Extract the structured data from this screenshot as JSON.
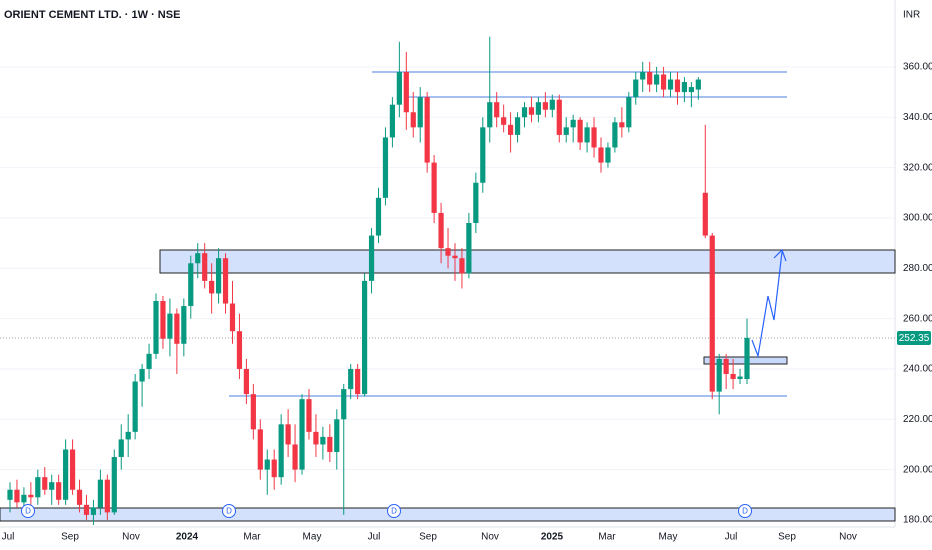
{
  "chart_data": {
    "type": "candlestick",
    "title": "ORIENT CEMENT LTD. · 1W · NSE",
    "currency": "INR",
    "last_price": 252.35,
    "up_color": "#089981",
    "down_color": "#f23645",
    "ylim": [
      177.2,
      386.6
    ],
    "yticks": [
      {
        "value": 180,
        "label": "180.00"
      },
      {
        "value": 200,
        "label": "200.00"
      },
      {
        "value": 220,
        "label": "220.00"
      },
      {
        "value": 240,
        "label": "240.00"
      },
      {
        "value": 260,
        "label": "260.00"
      },
      {
        "value": 280,
        "label": "280.00"
      },
      {
        "value": 300,
        "label": "300.00"
      },
      {
        "value": 320,
        "label": "320.00"
      },
      {
        "value": 340,
        "label": "340.00"
      },
      {
        "value": 360,
        "label": "360.00"
      }
    ],
    "xtick_labels": [
      "Jul",
      "Sep",
      "Nov",
      "2024",
      "Mar",
      "May",
      "Jul",
      "Sep",
      "Nov",
      "2025",
      "Mar",
      "May",
      "Jul",
      "Sep",
      "Nov"
    ],
    "events": [
      "D",
      "D",
      "D",
      "D"
    ],
    "open": [
      188,
      192,
      187,
      190,
      189,
      197,
      192,
      195,
      188,
      208,
      192,
      186,
      182,
      185,
      196,
      183,
      205,
      212,
      215,
      235,
      240,
      246,
      267,
      252,
      262,
      250,
      265,
      282,
      286,
      275,
      270,
      284,
      266,
      255,
      240,
      230,
      216,
      200,
      204,
      197,
      218,
      210,
      200,
      228,
      215,
      210,
      213,
      207,
      220,
      232,
      240,
      230,
      275,
      293,
      308,
      332,
      345,
      358,
      342,
      336,
      348,
      322,
      302,
      288,
      285,
      284,
      278,
      298,
      314,
      336,
      346,
      340,
      337,
      333,
      340,
      344,
      341,
      346,
      343,
      347,
      333,
      336,
      339,
      330,
      336,
      328,
      322,
      328,
      338,
      336,
      348,
      355,
      358,
      353,
      357,
      351,
      355,
      350,
      350,
      351,
      310,
      293,
      231,
      244,
      238,
      236,
      236
    ],
    "high": [
      195,
      196,
      193,
      195,
      200,
      201,
      198,
      198,
      212,
      212,
      196,
      190,
      188,
      200,
      198,
      208,
      218,
      222,
      238,
      242,
      250,
      270,
      269,
      268,
      264,
      268,
      285,
      290,
      290,
      282,
      288,
      286,
      275,
      262,
      244,
      234,
      220,
      208,
      208,
      222,
      224,
      218,
      230,
      232,
      222,
      217,
      218,
      224,
      234,
      242,
      242,
      278,
      296,
      312,
      336,
      348,
      370,
      366,
      350,
      352,
      350,
      325,
      306,
      296,
      290,
      288,
      302,
      318,
      340,
      372,
      350,
      345,
      342,
      342,
      346,
      348,
      348,
      350,
      349,
      349,
      340,
      341,
      340,
      338,
      340,
      332,
      330,
      340,
      344,
      350,
      358,
      362,
      362,
      360,
      360,
      358,
      358,
      356,
      354,
      356,
      337,
      294,
      246,
      246,
      244,
      240,
      260
    ],
    "low": [
      183,
      185,
      182,
      186,
      186,
      190,
      186,
      186,
      186,
      190,
      183,
      180,
      178,
      182,
      180,
      182,
      200,
      205,
      212,
      225,
      236,
      244,
      248,
      245,
      238,
      245,
      260,
      276,
      272,
      262,
      266,
      262,
      250,
      236,
      226,
      212,
      196,
      190,
      192,
      194,
      205,
      195,
      198,
      212,
      205,
      204,
      203,
      200,
      182,
      228,
      228,
      229,
      270,
      290,
      305,
      328,
      340,
      335,
      332,
      330,
      318,
      298,
      282,
      280,
      275,
      272,
      276,
      294,
      310,
      330,
      336,
      334,
      326,
      330,
      336,
      338,
      338,
      340,
      340,
      330,
      330,
      330,
      327,
      326,
      324,
      318,
      320,
      326,
      332,
      334,
      345,
      350,
      350,
      350,
      348,
      348,
      345,
      346,
      344,
      347,
      292,
      228,
      222,
      232,
      232,
      234,
      234
    ],
    "close": [
      192,
      187,
      190,
      189,
      197,
      192,
      195,
      188,
      208,
      192,
      186,
      182,
      185,
      196,
      183,
      205,
      212,
      215,
      235,
      240,
      246,
      267,
      252,
      262,
      250,
      265,
      282,
      286,
      275,
      270,
      284,
      266,
      255,
      240,
      230,
      216,
      200,
      204,
      197,
      218,
      210,
      200,
      228,
      215,
      210,
      213,
      207,
      220,
      232,
      240,
      230,
      275,
      293,
      308,
      332,
      345,
      358,
      342,
      336,
      348,
      322,
      302,
      288,
      285,
      284,
      278,
      298,
      314,
      336,
      346,
      340,
      337,
      333,
      340,
      344,
      341,
      346,
      343,
      347,
      333,
      336,
      339,
      330,
      336,
      328,
      322,
      328,
      338,
      336,
      348,
      355,
      358,
      353,
      357,
      351,
      355,
      350,
      354,
      352,
      355,
      293,
      231,
      244,
      238,
      236,
      237,
      252.35
    ]
  }
}
